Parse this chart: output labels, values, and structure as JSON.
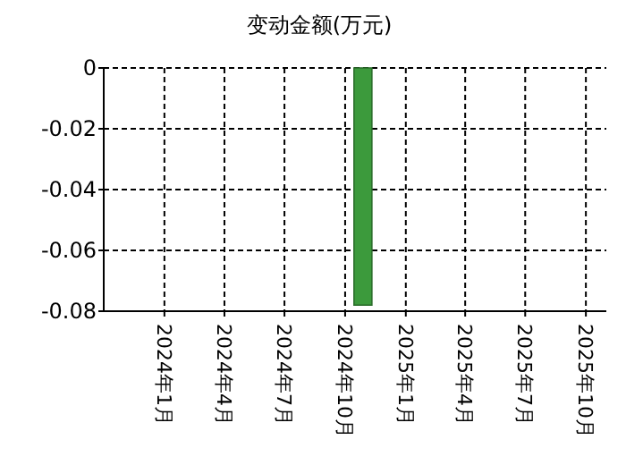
{
  "chart_data": {
    "type": "bar",
    "title": "变动金额(万元)",
    "x": [
      "2024-10-28"
    ],
    "series": [
      {
        "color": "#3c9a3c",
        "values": [
          -0.078
        ]
      }
    ],
    "xlim": [
      "2023-10-01",
      "2025-11-01"
    ],
    "xticks": [
      {
        "value": "2024-01-01",
        "label": "2024年1月"
      },
      {
        "value": "2024-04-01",
        "label": "2024年4月"
      },
      {
        "value": "2024-07-01",
        "label": "2024年7月"
      },
      {
        "value": "2024-10-01",
        "label": "2024年10月"
      },
      {
        "value": "2025-01-01",
        "label": "2025年1月"
      },
      {
        "value": "2025-04-01",
        "label": "2025年4月"
      },
      {
        "value": "2025-07-01",
        "label": "2025年7月"
      },
      {
        "value": "2025-10-01",
        "label": "2025年10月"
      }
    ],
    "ylim": [
      -0.08,
      0
    ],
    "yticks": [
      0,
      -0.02,
      -0.04,
      -0.06,
      -0.08
    ],
    "grid": true
  }
}
